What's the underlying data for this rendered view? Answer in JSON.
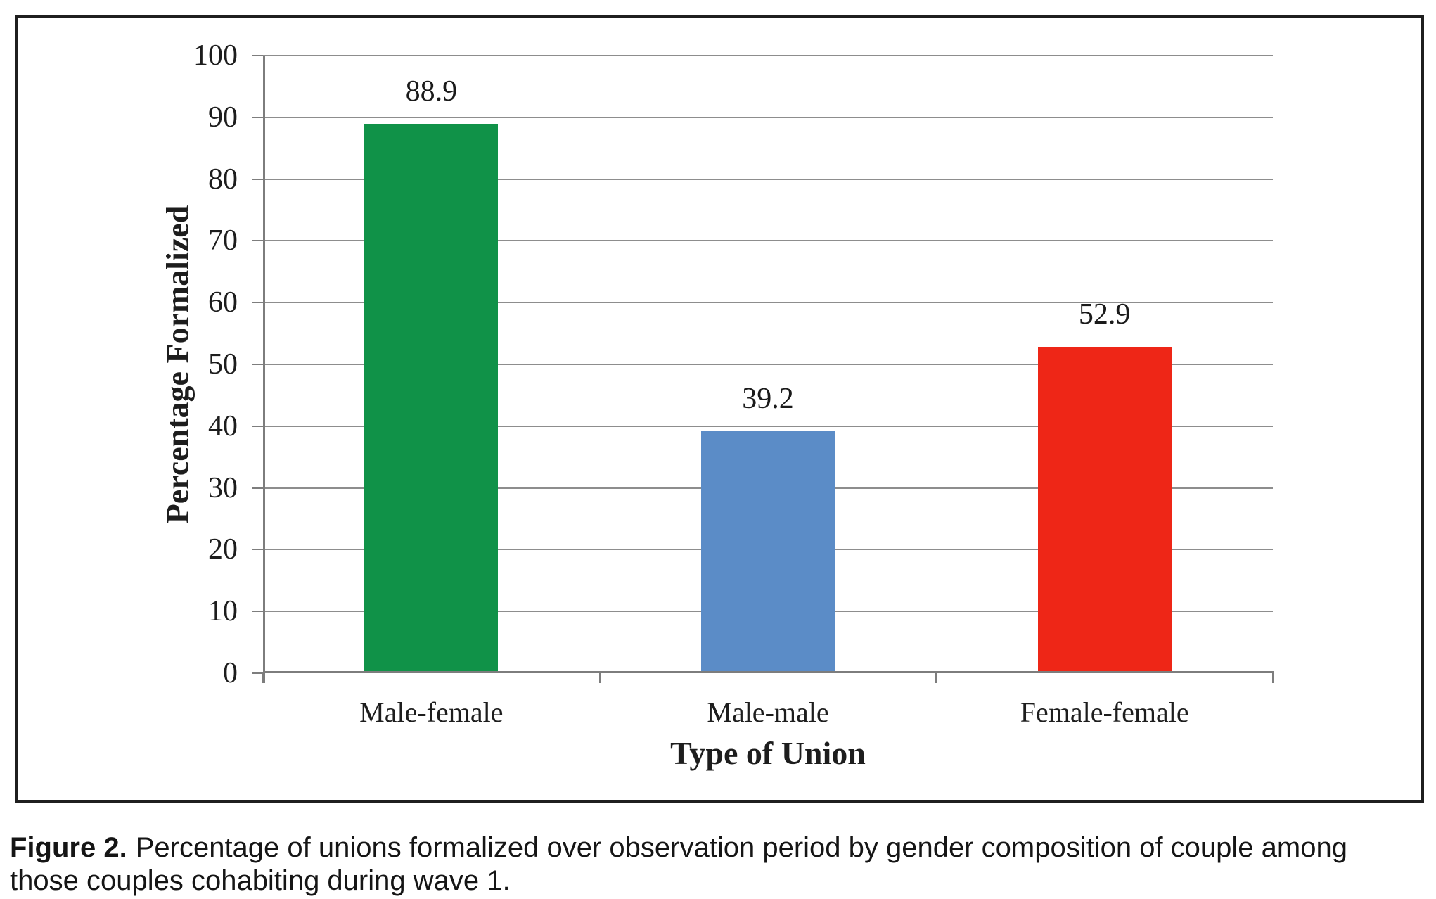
{
  "chart_data": {
    "type": "bar",
    "title": "",
    "categories": [
      "Male-female",
      "Male-male",
      "Female-female"
    ],
    "values": [
      88.9,
      39.2,
      52.9
    ],
    "value_labels": [
      "88.9",
      "39.2",
      "52.9"
    ],
    "bar_colors": [
      "#109248",
      "#5b8cc7",
      "#ee2617"
    ],
    "xlabel": "Type of Union",
    "ylabel": "Percentage Formalized",
    "ylim": [
      0,
      100
    ],
    "yticks": [
      0,
      10,
      20,
      30,
      40,
      50,
      60,
      70,
      80,
      90,
      100
    ],
    "grid": true,
    "gridline_color": "#8d8d8d",
    "legend_position": "none"
  },
  "caption": {
    "label": "Figure 2.",
    "text": "Percentage of unions formalized over observation period by gender composition of couple among those couples cohabiting during wave 1."
  }
}
